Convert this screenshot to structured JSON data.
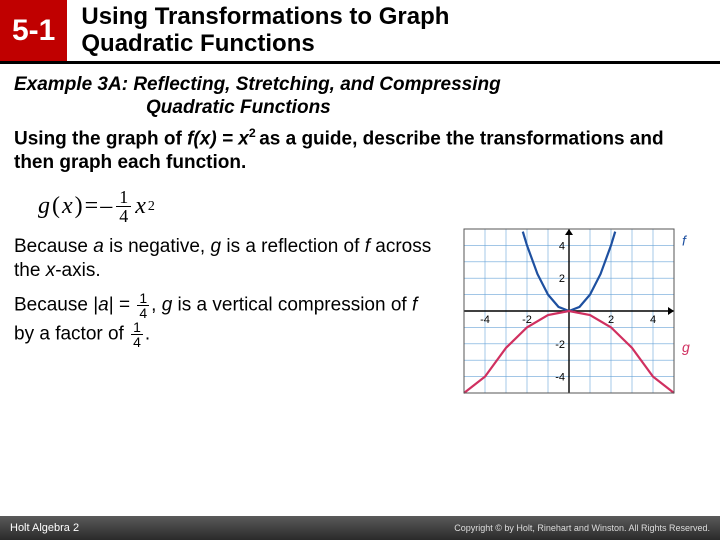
{
  "header": {
    "lesson": "5-1",
    "title_line1": "Using Transformations to Graph",
    "title_line2": "Quadratic Functions"
  },
  "example": {
    "label_line1": "Example 3A: Reflecting, Stretching, and Compressing",
    "label_line2": "Quadratic Functions"
  },
  "prompt": {
    "pre": "Using the graph of ",
    "func": "f(x) = x",
    "sup": "2 ",
    "post": "as a guide, describe the transformations and then graph each function."
  },
  "formula": {
    "g": "g",
    "open": "(",
    "x": "x",
    "close": ")",
    "eq": "=",
    "neg": "–",
    "frac_num": "1",
    "frac_den": "4",
    "var": "x",
    "exp": "2"
  },
  "explain": {
    "p1_a": "Because ",
    "p1_b": "a",
    "p1_c": " is negative, ",
    "p1_d": "g",
    "p1_e": " is a reflection of ",
    "p1_f": "f",
    "p1_g": " across the ",
    "p1_h": "x",
    "p1_i": "-axis.",
    "p2_a": "Because |",
    "p2_b": "a",
    "p2_c": "| = ",
    "p2_frac_num": "1",
    "p2_frac_den": "4",
    "p2_d": ", ",
    "p2_e": "g",
    "p2_f": " is a vertical compression of ",
    "p2_g": "f",
    "p2_h": " by a factor of ",
    "p2_frac2_num": "1",
    "p2_frac2_den": "4",
    "p2_i": "."
  },
  "graph": {
    "xlim": [
      -5,
      5
    ],
    "ylim": [
      -5,
      5
    ],
    "ticks": [
      -4,
      -2,
      2,
      4
    ],
    "tick_color": "#000000",
    "grid_color": "#6aa5d8",
    "axis_color": "#000000",
    "bg_color": "#ffffff",
    "f": {
      "label": "f",
      "color": "#1e50a0",
      "points": [
        [
          -2.2,
          4.84
        ],
        [
          -2,
          4
        ],
        [
          -1.5,
          2.25
        ],
        [
          -1,
          1
        ],
        [
          -0.5,
          0.25
        ],
        [
          0,
          0
        ],
        [
          0.5,
          0.25
        ],
        [
          1,
          1
        ],
        [
          1.5,
          2.25
        ],
        [
          2,
          4
        ],
        [
          2.2,
          4.84
        ]
      ]
    },
    "g": {
      "label": "g",
      "color": "#d03060",
      "points": [
        [
          -5,
          -6.25
        ],
        [
          -4,
          -4
        ],
        [
          -3,
          -2.25
        ],
        [
          -2,
          -1
        ],
        [
          -1,
          -0.25
        ],
        [
          0,
          0
        ],
        [
          1,
          -0.25
        ],
        [
          2,
          -1
        ],
        [
          3,
          -2.25
        ],
        [
          4,
          -4
        ],
        [
          5,
          -6.25
        ]
      ]
    },
    "tick_fontsize": 11
  },
  "footer": {
    "left": "Holt Algebra 2",
    "right": "Copyright © by Holt, Rinehart and Winston. All Rights Reserved."
  }
}
